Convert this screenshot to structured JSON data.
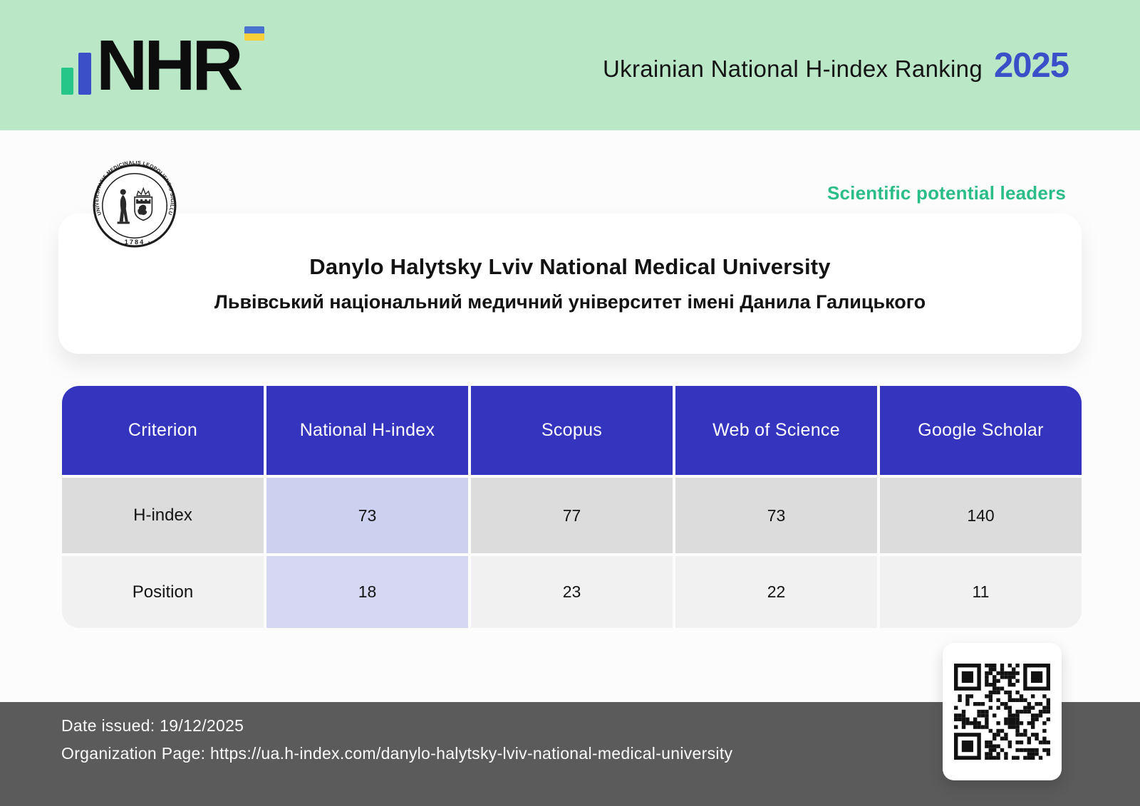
{
  "header": {
    "logo_text": "NHR",
    "title": "Ukrainian National H-index Ranking",
    "year": "2025"
  },
  "badge_label": "Scientific potential leaders",
  "university": {
    "name_en": "Danylo Halytsky Lviv National Medical University",
    "name_uk": "Львівський національний медичний університет імені Данила Галицького"
  },
  "seal": {
    "ring_text": "UNIVERSITATIS MEDICINALIS LEOPOLIENSIS SIGILLUM",
    "year_text": "· 1784 ·"
  },
  "table": {
    "columns": [
      "Criterion",
      "National H-index",
      "Scopus",
      "Web of Science",
      "Google Scholar"
    ],
    "rows": [
      {
        "label": "H-index",
        "values": [
          "73",
          "77",
          "73",
          "140"
        ]
      },
      {
        "label": "Position",
        "values": [
          "18",
          "23",
          "22",
          "11"
        ]
      }
    ]
  },
  "footer": {
    "date_issued": "Date issued: 19/12/2025",
    "organization_page": "Organization Page: https://ua.h-index.com/danylo-halytsky-lviv-national-medical-university"
  },
  "colors": {
    "band_green": "#bae8c6",
    "accent_blue": "#3a50c8",
    "accent_green": "#2bbd87",
    "table_header_blue": "#3434bf",
    "row_gray": "#dcdcdd",
    "row_light": "#f1f1f2",
    "highlight_lavender": "#cdd0ee",
    "footer_gray": "#5b5b5b",
    "flag_blue": "#4a73d1",
    "flag_yellow": "#f8cf3a",
    "logo_bar_green": "#26c688",
    "logo_bar_blue": "#3b4fc8"
  }
}
